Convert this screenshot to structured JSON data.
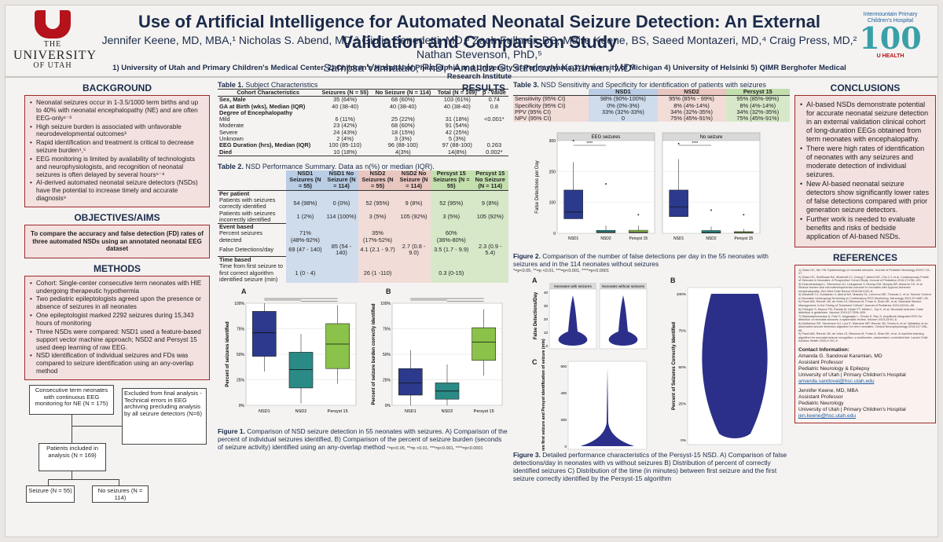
{
  "header": {
    "university": {
      "line1": "THE",
      "line2": "UNIVERSITY",
      "line3": "OF UTAH"
    },
    "title": "Use of Artificial Intelligence for Automated Neonatal Seizure Detection: An External Validation and Comparison Study",
    "authors_line1": "Jennifer Keene, MD, MBA,¹ Nicholas S. Abend, MD,² Giulia Benedetti, MD,³ Zach Fullmer, BS, Maire Keene, BS, Saeed Montazeri, MD,⁴ Craig Press, MD,² Nathan Stevenson, PhD,⁵",
    "authors_line2": "Sampsa Vanhatalo, PhD,⁴ Amanda G. Sandoval Karamian, MD¹",
    "affiliations": "1) University of Utah and Primary Children's Medical Center, 2) Children's Hospital of Philadelphia and University of Pennsylvania 3) University of Michigan 4) University of Helsinki 5) QIMR Berghofer Medical Research Institute",
    "partner_logo": {
      "line1": "Intermountain Primary Children's Hospital",
      "line2": "100",
      "line3": "U HEALTH"
    }
  },
  "background": {
    "heading": "BACKGROUND",
    "items": [
      "Neonatal seizures occur in 1-3.5/1000 term births and up to 40% with neonatal encephalopathy (NE) and are often EEG-only¹⁻³",
      "High seizure burden is associated with unfavorable neurodevelopmental outcomes³",
      "Rapid identification and treatment is critical to decrease seizure burden⁴,⁵",
      "EEG monitoring is limited by availability of technologists and neurophysiologists, and recognition of neonatal seizures is often delayed by several hours⁶⁻⁸",
      "AI-derived automated neonatal seizure detectors (NSDs) have the potential to increase timely and accurate diagnosis⁹"
    ]
  },
  "objectives": {
    "heading": "OBJECTIVES/AIMS",
    "text": "To compare the accuracy and false detection (FD) rates of three automated NSDs using an annotated neonatal EEG dataset"
  },
  "methods": {
    "heading": "METHODS",
    "items": [
      "Cohort: Single-center consecutive term neonates with HIE undergoing therapeutic hypothermia",
      "Two pediatric epileptologists agreed upon the presence or absence of seizures in all neonates",
      "One epileptologist marked 2292 seizures during 15,343 hours of monitoring",
      "Three NSDs were compared: NSD1 used a feature-based support vector machine approach; NSD2 and Persyst 15 used deep learning of raw EEG.",
      "NSD identification of individual seizures and FDs was compared to seizure identification using an any-overlap method"
    ]
  },
  "flowchart": {
    "consecutive": "Consecutive term neonates with continuous EEG monitoring for NE (N = 175)",
    "excluded": "Excluded from final analysis - Technical errors in EEG archiving precluding analysis by all seizure detectors (N=6)",
    "included": "Patients included in analysis (N = 169)",
    "seizure": "Seizure (N = 55)",
    "no_seizure": "No seizures (N = 114)"
  },
  "results_heading": "RESULTS",
  "table1": {
    "caption_bold": "Table 1.",
    "caption": "Subject Characteristics",
    "headers": [
      "Cohort Characteristics",
      "Seizures (N = 55)",
      "No Seizure (N = 114)",
      "Total (N = 169)",
      "p - value"
    ],
    "rows": [
      [
        "Sex, Male",
        "35 (64%)",
        "68 (60%)",
        "103 (61%)",
        "0.74"
      ],
      [
        "GA at Birth (wks), Median (IQR)",
        "40 (38-40)",
        "40 (38-40)",
        "40 (38-40)",
        "0.8"
      ],
      [
        "Degree of Encephalopathy",
        "",
        "",
        "",
        ""
      ],
      [
        "Mild",
        "6 (11%)",
        "25 (22%)",
        "31 (18%)",
        "<0.001*"
      ],
      [
        "Moderate",
        "23 (42%)",
        "68 (60%)",
        "91 (54%)",
        ""
      ],
      [
        "Severe",
        "24 (43%)",
        "18 (15%)",
        "42 (25%)",
        ""
      ],
      [
        "Unknown",
        "2 (4%)",
        "3 (3%)",
        "5 (3%)",
        ""
      ],
      [
        "EEG Duration (hrs), Median (IQR)",
        "100 (85-110)",
        "96 (88-100)",
        "97 (88-100)",
        "0.263"
      ],
      [
        "Died",
        "10 (18%)",
        "4(3%)",
        "14(8%)",
        "0.002*"
      ]
    ]
  },
  "table2": {
    "caption_bold": "Table 2.",
    "caption": "NSD Performance Summary. Data as n(%) or median (IQR).",
    "headers": [
      "",
      "NSD1 Seizures (N = 55)",
      "NSD1 No Seizure (N = 114)",
      "NSD2 Seizures (N = 55)",
      "NSD2 No Seizure (N = 114)",
      "Persyst 15 Seizures (N = 55)",
      "Persyst 15 No Seizure (N = 114)"
    ],
    "sections": [
      {
        "label": "Per patient",
        "rows": [
          [
            "Patients with seizures correctly identified",
            "54 (98%)",
            "0 (0%)",
            "52 (95%)",
            "9 (8%)",
            "52 (95%)",
            "9 (8%)"
          ],
          [
            "Patients with seizures incorrectly identified",
            "1 (2%)",
            "114 (100%)",
            "3 (5%)",
            "105 (92%)",
            "3 (5%)",
            "105 (92%)"
          ]
        ]
      },
      {
        "label": "Event based",
        "rows": [
          [
            "Percent seizures detected",
            "71% (48%-92%)",
            "",
            "35% (17%-52%)",
            "",
            "60% (36%-80%)",
            ""
          ],
          [
            "False Detections/day",
            "69 (47 - 140)",
            "85 (54 - 140)",
            "4.1 (2.1 - 9.7)",
            "2.7 (0.8 - 9.0)",
            "3.5 (1.7 - 9.9)",
            "2.3 (0.9 - 5.4)"
          ]
        ]
      },
      {
        "label": "Time based",
        "rows": [
          [
            "Time from first seizure to first correct algorithm identified seizure (min)",
            "1 (0 - 4)",
            "",
            "26 (1 -110)",
            "",
            "0.3 (0-15)",
            ""
          ]
        ]
      }
    ]
  },
  "table3": {
    "caption_bold": "Table 3.",
    "caption": "NSD Sensitivity and Specificity for identification of patients with seizures",
    "headers": [
      "",
      "NSD1",
      "NSD2",
      "Persyst 15"
    ],
    "rows": [
      [
        "Sensitivity (95% CI)",
        "98% (90%-100%)",
        "95% (85% - 99%)",
        "95% (85%-99%)"
      ],
      [
        "Specificity (95% CI)",
        "0% (0%-3%)",
        "8% (4%-14%)",
        "8% (4%-14%)"
      ],
      [
        "PPV (95% CI)",
        "33% (32%-33%)",
        "34% (32%-35%)",
        "34% (32%-35%)"
      ],
      [
        "NPV (95% CI)",
        "0",
        "75% (45%-91%)",
        "75% (45%-91%)"
      ]
    ]
  },
  "chart_data": [
    {
      "type": "box",
      "id": "figure2",
      "panels": [
        "EEG seizures",
        "No seizure"
      ],
      "ylabel": "False Detections per Day",
      "categories": [
        "NSD1",
        "NSD2",
        "Persyst 15"
      ],
      "ylim": [
        0,
        300
      ],
      "yticks": [
        0,
        100,
        200,
        300
      ],
      "significance": [
        "****",
        "****"
      ],
      "series": [
        {
          "name": "EEG seizures",
          "median": [
            69,
            4.1,
            3.5
          ],
          "q1": [
            47,
            2.1,
            1.7
          ],
          "q3": [
            140,
            9.7,
            9.9
          ],
          "whisker_high": [
            230,
            25,
            25
          ],
          "max_outlier": [
            300,
            160,
            60
          ]
        },
        {
          "name": "No seizure",
          "median": [
            85,
            2.7,
            2.3
          ],
          "q1": [
            54,
            0.8,
            0.9
          ],
          "q3": [
            140,
            9.0,
            5.4
          ],
          "whisker_high": [
            240,
            22,
            14
          ],
          "max_outlier": [
            290,
            75,
            60
          ]
        }
      ]
    },
    {
      "type": "box",
      "id": "figure1A",
      "ylabel": "Percent of seizures identified",
      "categories": [
        "NSD1",
        "NSD2",
        "Persyst 15"
      ],
      "ylim": [
        0,
        100
      ],
      "yticks": [
        "0%",
        "25%",
        "50%",
        "75%",
        "100%"
      ],
      "median": [
        71,
        35,
        60
      ],
      "q1": [
        48,
        17,
        36
      ],
      "q3": [
        92,
        52,
        80
      ],
      "colors": [
        "#2b3a8c",
        "#2a8a86",
        "#8ac24a"
      ]
    },
    {
      "type": "box",
      "id": "figure1B",
      "ylabel": "Percent of seizure burden correctly identified",
      "categories": [
        "NSD1",
        "NSD2",
        "Persyst 15"
      ],
      "ylim": [
        0,
        100
      ],
      "yticks": [
        "0%",
        "25%",
        "50%",
        "75%",
        "100%"
      ],
      "median": [
        22,
        14,
        62
      ],
      "q1": [
        10,
        6,
        44
      ],
      "q3": [
        36,
        22,
        76
      ],
      "colors": [
        "#2b3a8c",
        "#2a8a86",
        "#8ac24a"
      ]
    },
    {
      "type": "violin",
      "id": "figure3",
      "panels": {
        "A": {
          "ylabel": "False Detections/Day",
          "groups": [
            "Neonates with seizures",
            "Neonates without seizures"
          ],
          "ylim": [
            0,
            40
          ],
          "yticks": [
            0,
            10,
            20,
            30,
            40
          ]
        },
        "B": {
          "ylabel": "Percent of Seizures Correctly Identified",
          "yticks": [
            "0%",
            "25%",
            "50%",
            "75%",
            "100%"
          ]
        },
        "C": {
          "ylabel": "Time between first seizure and Persyst identification of seizure (min)",
          "ylim": [
            0,
            600
          ],
          "yticks": [
            0,
            200,
            400,
            600
          ]
        }
      }
    }
  ],
  "figure1": {
    "label_a": "A",
    "label_b": "B",
    "caption_bold": "Figure 1.",
    "caption": "Comparison of NSD seizure detection in 55 neonates with seizures. A) Comparison of the percent of individual seizures identified, B) Comparison of the percent of seizure burden (seconds of seizure activity) identified using an any-overlap method",
    "note": "*=p<0.05, **=p <0.01, ***=p<0.001, ****=p<0.0001"
  },
  "figure2": {
    "caption_bold": "Figure 2.",
    "caption": "Comparison of the number of false detections per day in the 55 neonates with seizures and in the 114 neonates without seizures",
    "note": "*=p<0.05, **=p <0.01, ***=p<0.001, ****=p<0.0001"
  },
  "figure3": {
    "label_a": "A",
    "label_b": "B",
    "label_c": "C",
    "caption_bold": "Figure 3.",
    "caption": "Detailed performance characteristics of the Persyst-15 NSD. A) Comparison of false detections/day in neonates with vs without seizures B) Distribution of percent of correctly identified seizures C) Distribution of the time (in minutes) between first seizure and the first seizure correctly identified by the Persyst-15 algorithm"
  },
  "conclusions": {
    "heading": "CONCLUSIONS",
    "items": [
      "AI-based NSDs demonstrate potential for accurate neonatal seizure detection in an external validation clinical cohort of long-duration EEGs obtained from term neonates with encephalopathy.",
      "There were high rates of identification of neonates with any seizures and moderate detection of individual seizures.",
      "New AI-based neonatal seizure detectors show significantly lower rates of false detections compared with prior generation seizure detectors.",
      "Further work is needed to evaluate benefits and risks of bedside application of AI-based NSDs."
    ]
  },
  "references": {
    "heading": "REFERENCES",
    "items": [
      "1) Glass HC, Wu YW. Epidemiology of neonatal seizures. Journal of Pediatric Neurology 2009;7:13–17.",
      "2) Glass HC, Shellhaas RA, Wusthoff CJ, Chang T, Abend NS, Chu CJ, et al. Contemporary Profile of Seizures in Neonates: A Prospective Cohort Study. Journal of Pediatrics 2016;174:98–103.",
      "3) Kharoshankaya L, Stevenson NJ, Livingstone V, Murray DM, Murphy BP, Ahearne CE, et al. Seizure burden and neurodevelopmental outcome in neonates with hypoxic-ischemic encephalopathy. Dev Med Child Neurol 2016;58:1242–8.",
      "4) Wusthoff CJ, Sundaram V, Abend NS, Massey SL, Lemmon ME, Thomas C, et al. Seizure Control in Neonates Undergoing Screening vs Confirmatory EEG Monitoring. Neurology 2021;97:e587–96.",
      "5) Pavel AM, Rennie JM, de Vries LS, Blennow M, Foran A, Shah DK, et al. Neonatal Seizure Management: Is the Timing of Treatment Critical? Journal of Pediatrics 2022;243:61–68.",
      "6) Pellegrin S, Munoz FM, Padula M, Heath PT, Meller L, Top K, et al. Neonatal seizures: Case definition & guidelines. Vaccine 2019;37:7596–609.",
      "7) Rakshasbhuvankar A, Paul S, Nagarajan L, Ghosh S, Rao S. Amplitude-integrated EEG for detection of neonatal seizures: a systematic review. Seizure 2015;33:90–8.",
      "8) Mathieson SR, Stevenson NJ, Low E, Marnane WP, Rennie JM, Temko A, et al. Validation of an automated seizure detection algorithm for term neonates. Clinical Neurophysiology 2016;127:156–68.",
      "9) Pavel AM, Rennie JM, de Vries LS, Blennow M, Foran A, Shah DK, et al. A machine-learning algorithm for neonatal seizure recognition: a multicentre, randomised, controlled trial. Lancet Child Adolesc Health 2020;4:740–9."
    ]
  },
  "contact": {
    "heading": "Contact Information:",
    "person1": [
      "Amanda G. Sandoval Karamian, MD",
      "Assistant Professor",
      "Pediatric Neurology & Epilepsy",
      "University of Utah | Primary Children's Hospital"
    ],
    "email1": "amanda.sandoval@hsc.utah.edu",
    "person2": [
      "Jennifer Keene, MD, MBA",
      "Assistant Professor",
      "Pediatric Neurology",
      "University of Utah | Primary Children's Hospital"
    ],
    "email2": "jen.keene@hsc.utah.edu"
  },
  "colors": {
    "accent": "#9b2a2a",
    "navy": "#1b2a4a",
    "nsd1": "#2b3a8c",
    "nsd2": "#2a8a86",
    "persyst": "#8ac24a"
  }
}
